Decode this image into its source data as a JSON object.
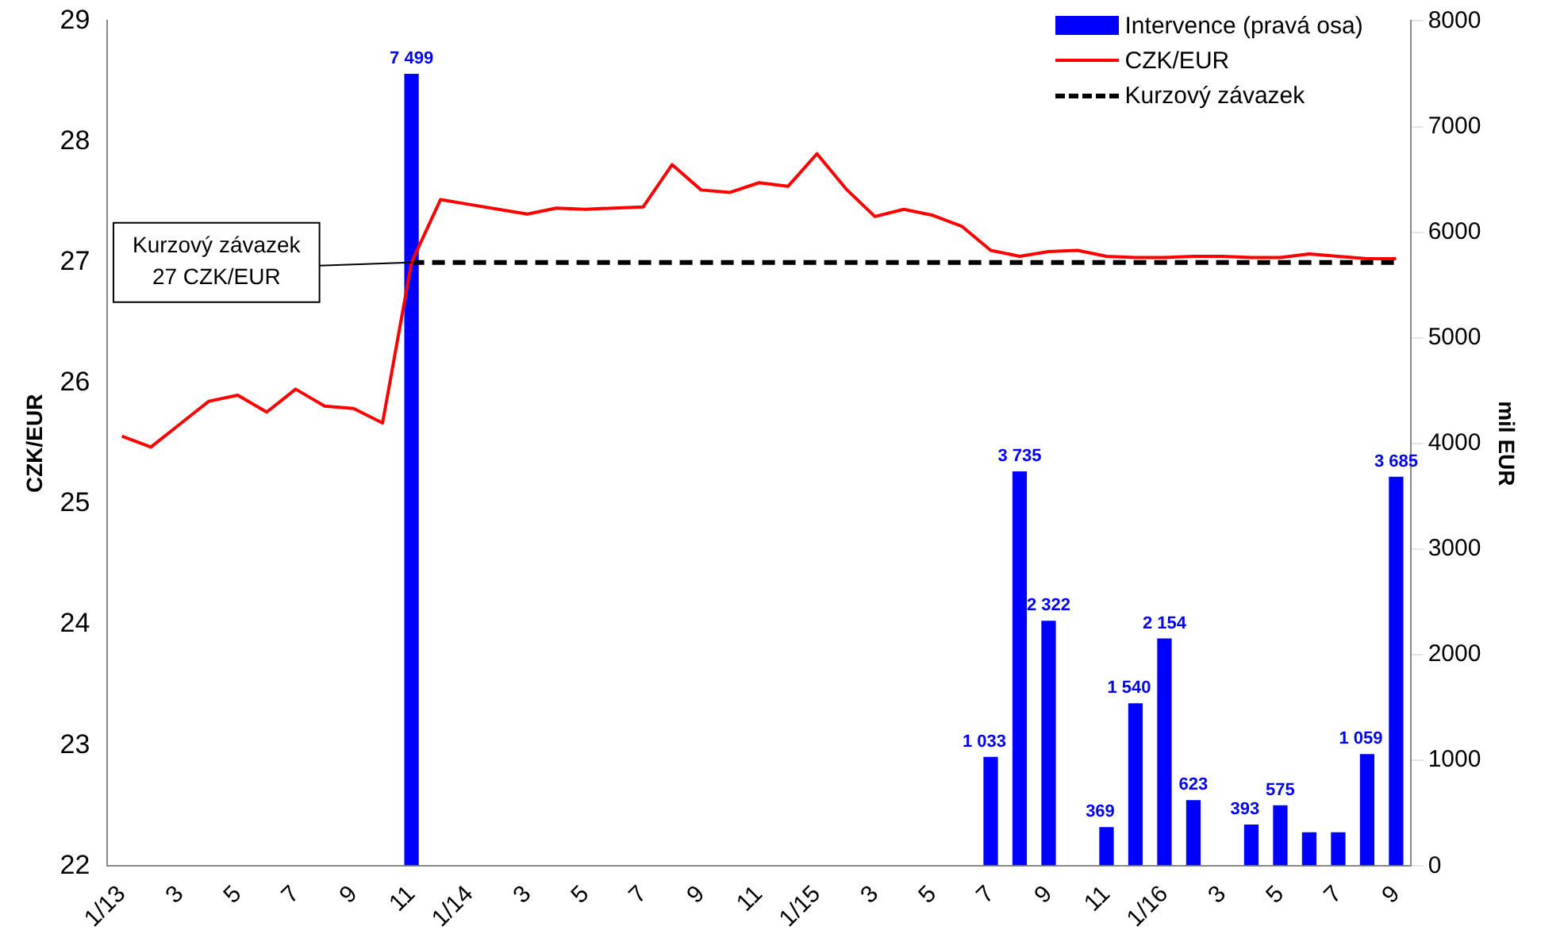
{
  "chart_data": {
    "type": "bar",
    "categories": [
      "1/13",
      null,
      "3",
      null,
      "5",
      null,
      "7",
      null,
      "9",
      null,
      "11",
      null,
      "1/14",
      null,
      "3",
      null,
      "5",
      null,
      "7",
      null,
      "9",
      null,
      "11",
      null,
      "1/15",
      null,
      "3",
      null,
      "5",
      null,
      "7",
      null,
      "9",
      null,
      "11",
      null,
      "1/16",
      null,
      "3",
      null,
      "5",
      null,
      "7",
      null,
      "9"
    ],
    "series": [
      {
        "name": "Intervence (pravá osa)",
        "axis": "y2",
        "color": "#0000ff",
        "values": [
          null,
          null,
          null,
          null,
          null,
          null,
          null,
          null,
          null,
          null,
          7499,
          null,
          null,
          null,
          null,
          null,
          null,
          null,
          null,
          null,
          null,
          null,
          null,
          null,
          null,
          null,
          null,
          null,
          null,
          null,
          1033,
          3735,
          2322,
          null,
          369,
          1540,
          2154,
          623,
          null,
          393,
          575,
          320,
          320,
          1059,
          3685
        ],
        "value_labels": [
          null,
          null,
          null,
          null,
          null,
          null,
          null,
          null,
          null,
          null,
          "7 499",
          null,
          null,
          null,
          null,
          null,
          null,
          null,
          null,
          null,
          null,
          null,
          null,
          null,
          null,
          null,
          null,
          null,
          null,
          null,
          "1 033",
          "3 735",
          "2 322",
          null,
          "369",
          "1 540",
          "2 154",
          "623",
          null,
          "393",
          "575",
          null,
          null,
          "1 059",
          "3 685"
        ]
      },
      {
        "name": "CZK/EUR",
        "type": "line",
        "color": "#ff0000",
        "line_style": "solid",
        "values": [
          25.56,
          25.47,
          25.66,
          25.85,
          25.9,
          25.76,
          25.95,
          25.81,
          25.79,
          25.67,
          27.0,
          27.52,
          27.48,
          27.44,
          27.4,
          27.45,
          27.44,
          27.45,
          27.46,
          27.81,
          27.6,
          27.58,
          27.66,
          27.63,
          27.9,
          27.61,
          27.38,
          27.44,
          27.39,
          27.3,
          27.1,
          27.05,
          27.09,
          27.1,
          27.05,
          27.04,
          27.04,
          27.05,
          27.05,
          27.04,
          27.04,
          27.07,
          27.05,
          27.03,
          27.03
        ]
      },
      {
        "name": "Kurzový závazek",
        "type": "line",
        "color": "#000000",
        "line_style": "dashed",
        "values": [
          null,
          null,
          null,
          null,
          null,
          null,
          null,
          null,
          null,
          null,
          27,
          27,
          27,
          27,
          27,
          27,
          27,
          27,
          27,
          27,
          27,
          27,
          27,
          27,
          27,
          27,
          27,
          27,
          27,
          27,
          27,
          27,
          27,
          27,
          27,
          27,
          27,
          27,
          27,
          27,
          27,
          27,
          27,
          27,
          27
        ]
      }
    ],
    "ylabel": "CZK/EUR",
    "y2label": "mil EUR",
    "ylim": [
      22,
      29
    ],
    "yticks": [
      22,
      23,
      24,
      25,
      26,
      27,
      28,
      29
    ],
    "y2lim": [
      0,
      8000
    ],
    "y2ticks": [
      0,
      1000,
      2000,
      3000,
      4000,
      5000,
      6000,
      7000,
      8000
    ],
    "annotations": [
      "Kurzový závazek\n27 CZK/EUR"
    ],
    "legend": "top right",
    "marker": "none"
  }
}
